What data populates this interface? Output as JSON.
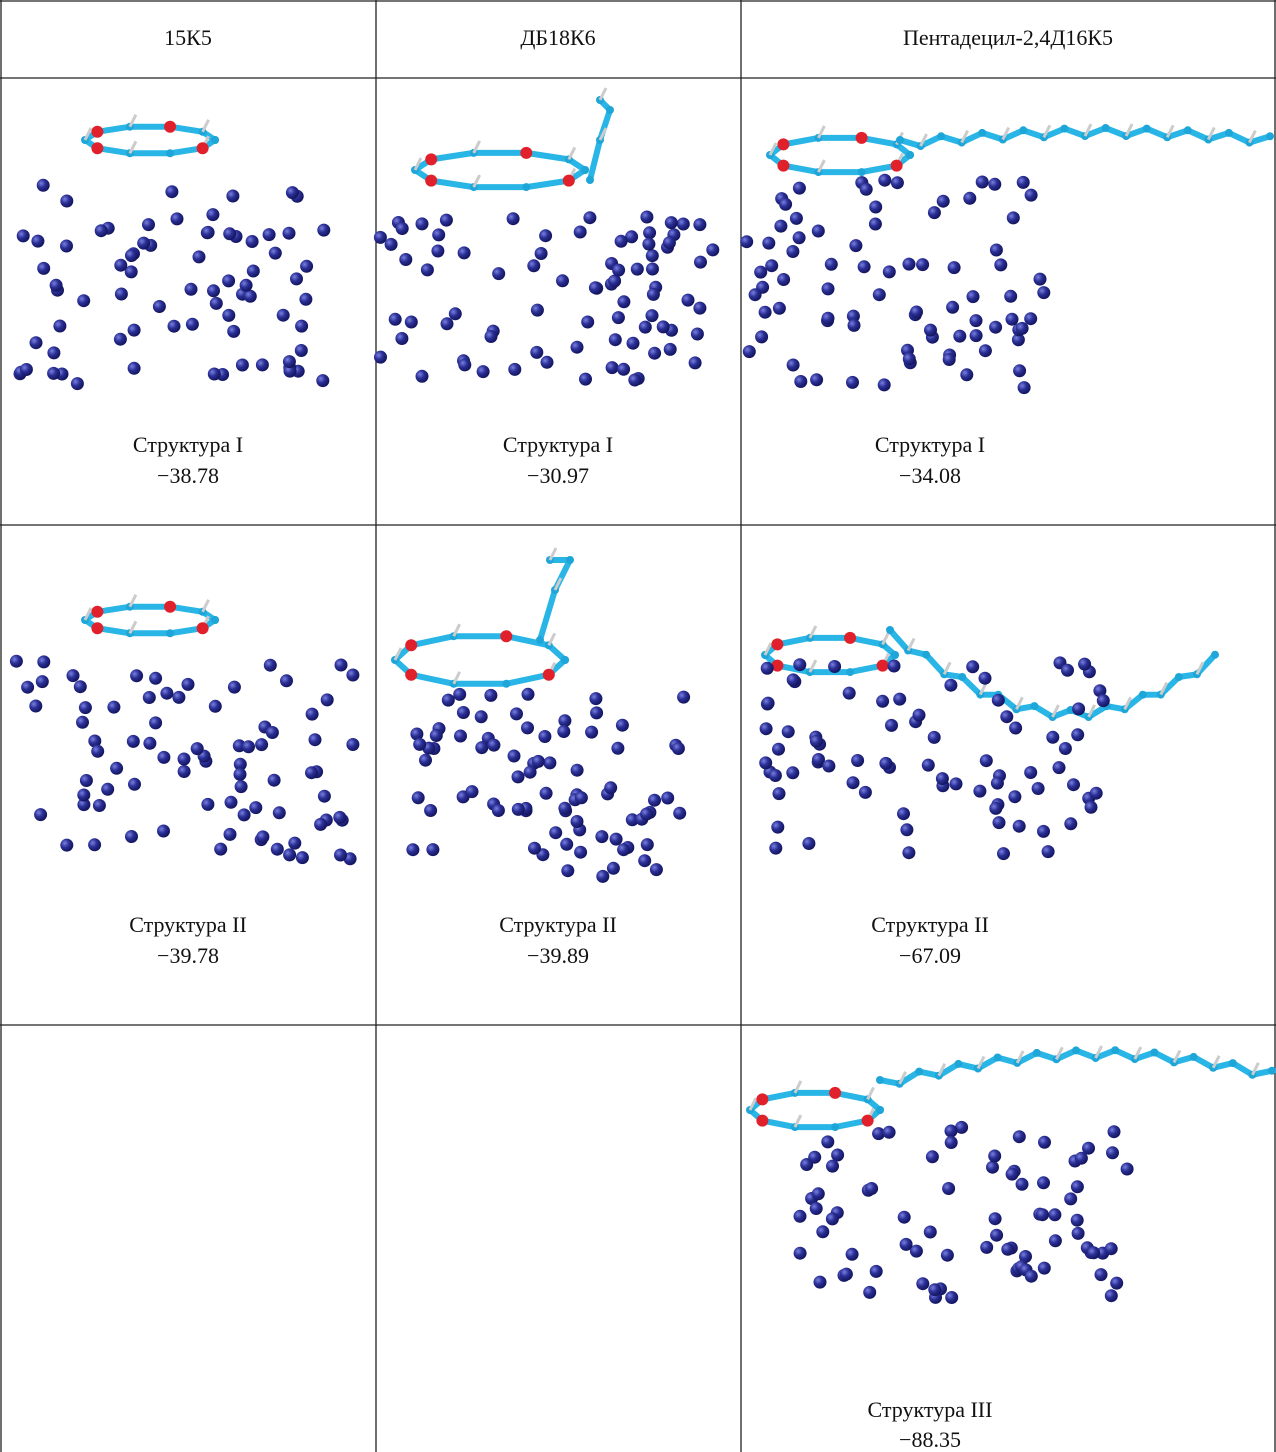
{
  "table": {
    "header": [
      "15К5",
      "ДБ18К6",
      "Пентадецил-2,4Д16К5"
    ],
    "rows": [
      [
        {
          "label": "Структура I",
          "value": "−38.78"
        },
        {
          "label": "Структура I",
          "value": "−30.97"
        },
        {
          "label": "Структура I",
          "value": "−34.08"
        }
      ],
      [
        {
          "label": "Структура II",
          "value": "−39.78"
        },
        {
          "label": "Структура II",
          "value": "−39.89"
        },
        {
          "label": "Структура II",
          "value": "−67.09"
        }
      ],
      [
        null,
        null,
        {
          "label": "Структура III",
          "value": "−88.35"
        }
      ]
    ]
  }
}
